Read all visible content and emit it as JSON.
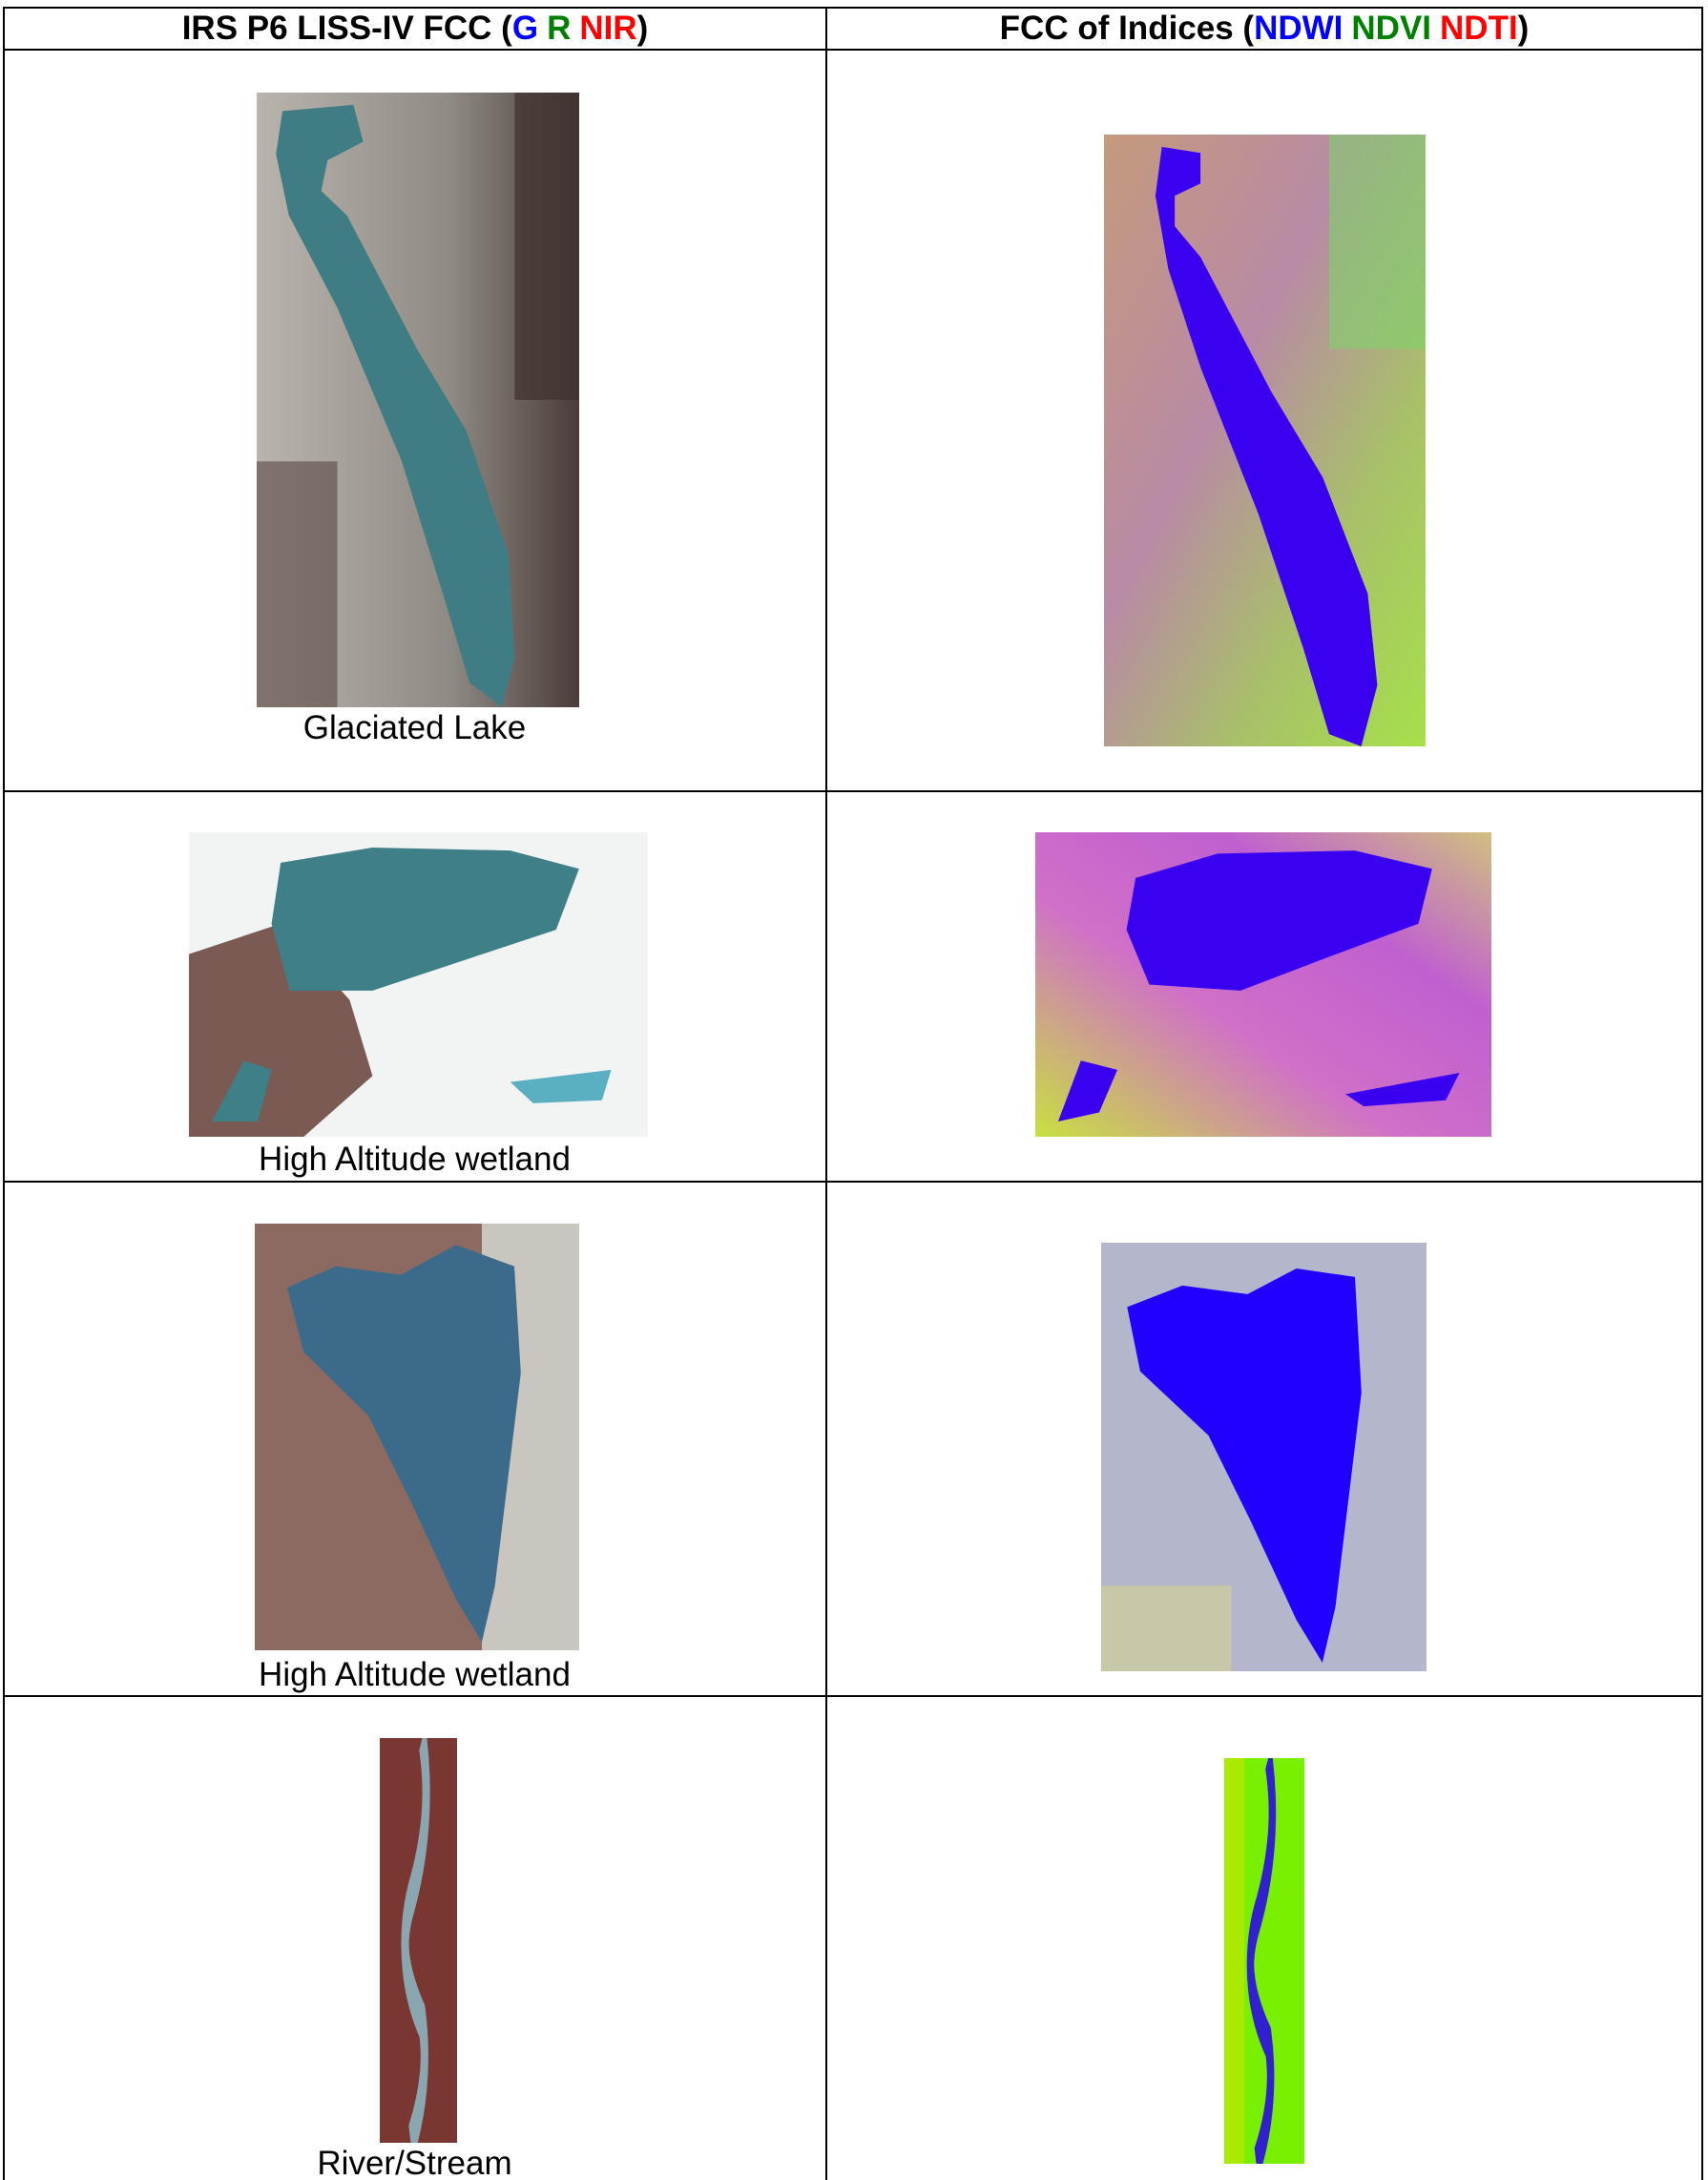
{
  "table": {
    "headers": [
      {
        "parts": [
          "IRS P6 LISS-IV FCC (",
          "G",
          "R",
          "NIR",
          ")"
        ]
      },
      {
        "parts": [
          "FCC of Indices (",
          "NDWI",
          "NDVI",
          "NDTI",
          ")"
        ]
      }
    ],
    "captions": [
      "Glaciated Lake",
      "High Altitude wetland",
      "High Altitude wetland",
      "River/Stream"
    ]
  }
}
